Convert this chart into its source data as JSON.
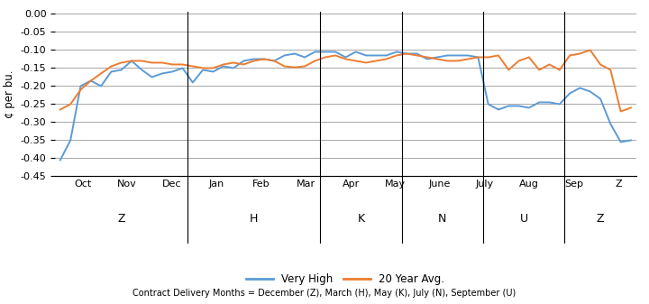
{
  "ylabel": "¢ per bu.",
  "ylim": [
    -0.45,
    0.005
  ],
  "yticks": [
    0.0,
    -0.05,
    -0.1,
    -0.15,
    -0.2,
    -0.25,
    -0.3,
    -0.35,
    -0.4,
    -0.45
  ],
  "background_color": "#ffffff",
  "grid_color": "#999999",
  "very_high_color": "#5B9BD5",
  "avg_color": "#ED7D31",
  "legend_label_vh": "Very High",
  "legend_label_avg": "20 Year Avg.",
  "footnote": "Contract Delivery Months = December (Z), March (H), May (K), July (N), September (U)",
  "month_labels": [
    "Oct",
    "Nov",
    "Dec",
    "Jan",
    "Feb",
    "Mar",
    "Apr",
    "May",
    "June",
    "July",
    "Aug",
    "Sep"
  ],
  "contract_labels": [
    "Z",
    "H",
    "K",
    "N",
    "U",
    "Z"
  ],
  "group_sizes": [
    3,
    3,
    2,
    2,
    2,
    1
  ],
  "very_high": [
    -0.405,
    -0.35,
    -0.2,
    -0.185,
    -0.2,
    -0.16,
    -0.155,
    -0.13,
    -0.155,
    -0.175,
    -0.165,
    -0.16,
    -0.15,
    -0.19,
    -0.155,
    -0.16,
    -0.145,
    -0.15,
    -0.13,
    -0.125,
    -0.125,
    -0.13,
    -0.115,
    -0.11,
    -0.12,
    -0.105,
    -0.105,
    -0.105,
    -0.12,
    -0.105,
    -0.115,
    -0.115,
    -0.115,
    -0.105,
    -0.11,
    -0.11,
    -0.125,
    -0.12,
    -0.115,
    -0.115,
    -0.115,
    -0.12,
    -0.25,
    -0.265,
    -0.255,
    -0.255,
    -0.26,
    -0.245,
    -0.245,
    -0.25,
    -0.22,
    -0.205,
    -0.215,
    -0.235,
    -0.305,
    -0.355,
    -0.35
  ],
  "avg_20yr": [
    -0.265,
    -0.25,
    -0.21,
    -0.185,
    -0.165,
    -0.145,
    -0.135,
    -0.13,
    -0.13,
    -0.135,
    -0.135,
    -0.14,
    -0.14,
    -0.145,
    -0.15,
    -0.15,
    -0.14,
    -0.135,
    -0.14,
    -0.13,
    -0.125,
    -0.13,
    -0.145,
    -0.148,
    -0.145,
    -0.13,
    -0.12,
    -0.115,
    -0.125,
    -0.13,
    -0.135,
    -0.13,
    -0.125,
    -0.115,
    -0.11,
    -0.115,
    -0.12,
    -0.125,
    -0.13,
    -0.13,
    -0.125,
    -0.12,
    -0.12,
    -0.115,
    -0.155,
    -0.13,
    -0.12,
    -0.155,
    -0.14,
    -0.155,
    -0.115,
    -0.11,
    -0.1,
    -0.14,
    -0.155,
    -0.27,
    -0.26
  ]
}
